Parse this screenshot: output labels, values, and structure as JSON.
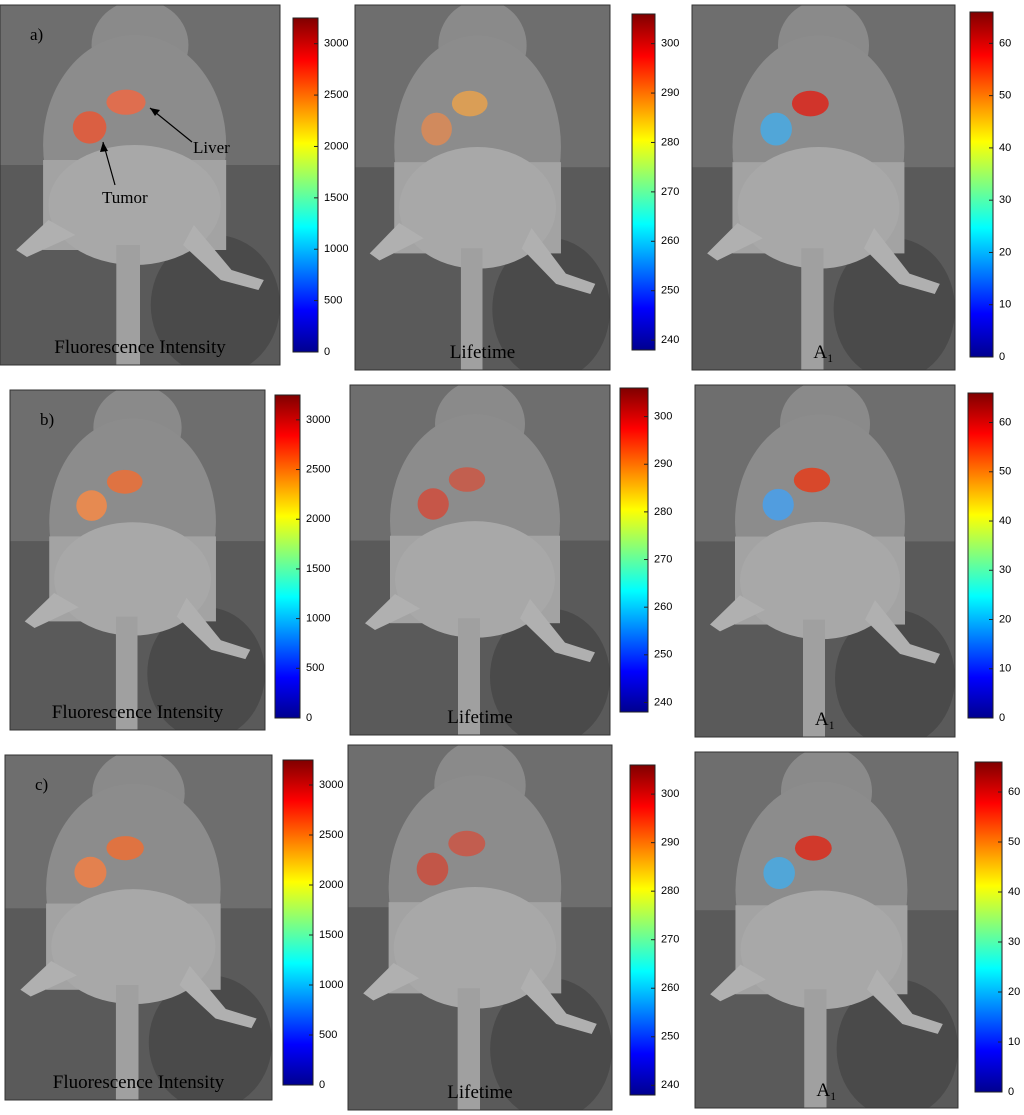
{
  "rows": [
    {
      "label": "a)",
      "panels": [
        {
          "caption": "Fluorescence Intensity",
          "colorbar": {
            "clim": [
              0,
              3250
            ],
            "ticks": [
              0,
              500,
              1000,
              1500,
              2000,
              2500,
              3000
            ]
          }
        },
        {
          "caption": "Lifetime",
          "colorbar": {
            "clim": [
              238,
              306
            ],
            "ticks": [
              240,
              250,
              260,
              270,
              280,
              290,
              300
            ]
          }
        },
        {
          "caption": "A₁",
          "colorbar": {
            "clim": [
              0,
              66
            ],
            "ticks": [
              0,
              10,
              20,
              30,
              40,
              50,
              60
            ]
          }
        }
      ]
    },
    {
      "label": "b)",
      "panels": [
        {
          "caption": "Fluorescence Intensity",
          "colorbar": {
            "clim": [
              0,
              3250
            ],
            "ticks": [
              0,
              500,
              1000,
              1500,
              2000,
              2500,
              3000
            ]
          }
        },
        {
          "caption": "Lifetime",
          "colorbar": {
            "clim": [
              238,
              306
            ],
            "ticks": [
              240,
              250,
              260,
              270,
              280,
              290,
              300
            ]
          }
        },
        {
          "caption": "A₁",
          "colorbar": {
            "clim": [
              0,
              66
            ],
            "ticks": [
              0,
              10,
              20,
              30,
              40,
              50,
              60
            ]
          }
        }
      ]
    },
    {
      "label": "c)",
      "panels": [
        {
          "caption": "Fluorescence Intensity",
          "colorbar": {
            "clim": [
              0,
              3250
            ],
            "ticks": [
              0,
              500,
              1000,
              1500,
              2000,
              2500,
              3000
            ]
          }
        },
        {
          "caption": "Lifetime",
          "colorbar": {
            "clim": [
              238,
              306
            ],
            "ticks": [
              240,
              250,
              260,
              270,
              280,
              290,
              300
            ]
          }
        },
        {
          "caption": "A₁",
          "colorbar": {
            "clim": [
              0,
              66
            ],
            "ticks": [
              0,
              10,
              20,
              30,
              40,
              50,
              60
            ]
          }
        }
      ]
    }
  ],
  "annotations": {
    "liver": "Liver",
    "tumor": "Tumor"
  }
}
